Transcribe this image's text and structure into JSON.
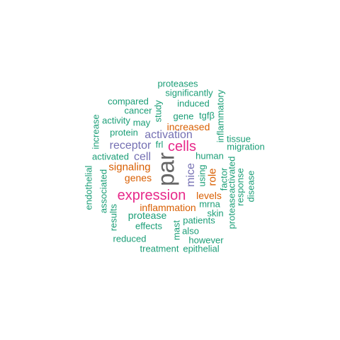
{
  "palette": {
    "green": "#1b9e77",
    "orange": "#d95f02",
    "purple": "#7570b3",
    "magenta": "#e7298a",
    "gray": "#666666"
  },
  "words": {
    "par": "par",
    "cells": "cells",
    "expression": "expression",
    "receptor": "receptor",
    "activation": "activation",
    "mice": "mice",
    "cell": "cell",
    "signaling": "signaling",
    "inflammation": "inflammation",
    "increased": "increased",
    "genes": "genes",
    "role": "role",
    "levels": "levels",
    "proteases": "proteases",
    "significantly": "significantly",
    "compared": "compared",
    "induced": "induced",
    "cancer": "cancer",
    "inflammatory": "inflammatory",
    "study": "study",
    "gene": "gene",
    "tgfb": "tgfβ",
    "increase": "increase",
    "activity": "activity",
    "may": "may",
    "protein": "protein",
    "tissue": "tissue",
    "migration": "migration",
    "frl": "frl",
    "activated": "activated",
    "human": "human",
    "using": "using",
    "factor": "factor",
    "endothelial": "endothelial",
    "associated": "associated",
    "proteaseactivated": "proteaseactivated",
    "response": "response",
    "disease": "disease",
    "mrna": "mrna",
    "skin": "skin",
    "protease": "protease",
    "results": "results",
    "effects": "effects",
    "mast": "mast",
    "patients": "patients",
    "also": "also",
    "reduced": "reduced",
    "however": "however",
    "treatment": "treatment",
    "epithelial": "epithelial"
  }
}
